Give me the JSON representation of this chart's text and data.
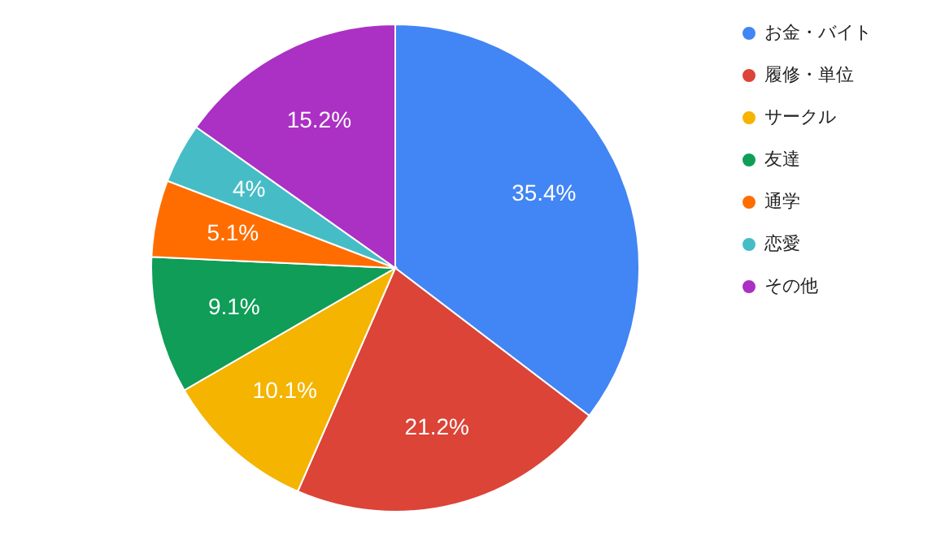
{
  "chart_data": {
    "type": "pie",
    "categories": [
      "お金・バイト",
      "履修・単位",
      "サークル",
      "友達",
      "通学",
      "恋愛",
      "その他"
    ],
    "values": [
      35.4,
      21.2,
      10.1,
      9.1,
      5.1,
      4,
      15.2
    ],
    "colors": [
      "#4285f4",
      "#db4437",
      "#f4b400",
      "#0f9d58",
      "#ff6d01",
      "#46bdc6",
      "#ab30c4"
    ],
    "value_labels": [
      "35.4%",
      "21.2%",
      "10.1%",
      "9.1%",
      "5.1%",
      "4%",
      "15.2%"
    ],
    "legend": "top right"
  }
}
